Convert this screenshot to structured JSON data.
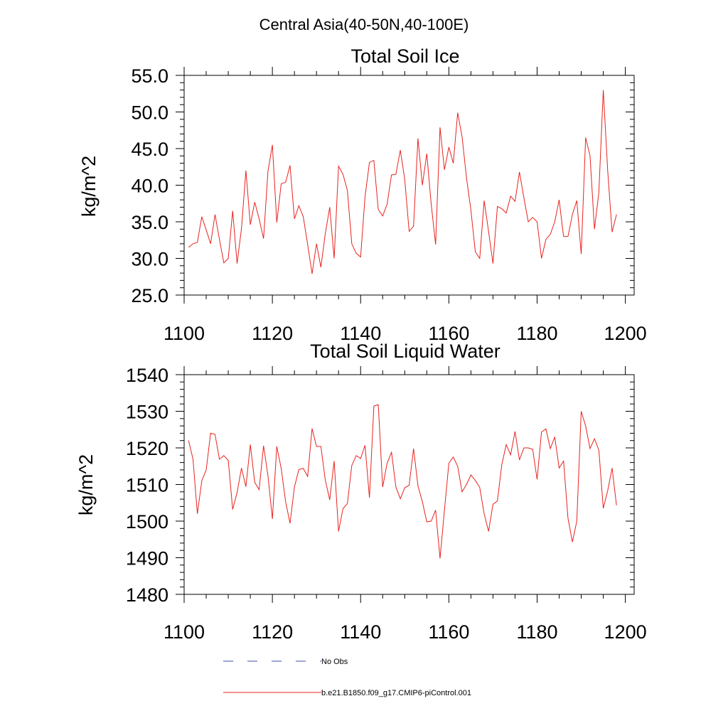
{
  "main_title": "Central Asia(40-50N,40-100E)",
  "chart_data": [
    {
      "type": "line",
      "title": "Total Soil Ice",
      "xlabel": "",
      "ylabel": "kg/m^2",
      "xlim": [
        1100,
        1202
      ],
      "ylim": [
        25,
        55
      ],
      "x_ticks": [
        1100,
        1120,
        1140,
        1160,
        1180,
        1200
      ],
      "x_tick_labels": [
        "1100",
        "1120",
        "1140",
        "1160",
        "1180",
        "1200"
      ],
      "y_ticks": [
        25,
        30,
        35,
        40,
        45,
        50,
        55
      ],
      "y_tick_labels": [
        "25.0",
        "30.0",
        "35.0",
        "40.0",
        "45.0",
        "50.0",
        "55.0"
      ],
      "series": [
        {
          "name": "b.e21.B1850.f09_g17.CMIP6-piControl.001",
          "color": "#e8231f",
          "x_start": 1101,
          "values": [
            31.5,
            32.0,
            32.2,
            35.7,
            33.9,
            32.0,
            36.0,
            32.6,
            29.4,
            30.0,
            36.5,
            29.3,
            34.1,
            42.0,
            34.6,
            37.7,
            35.4,
            32.7,
            41.9,
            45.5,
            34.9,
            40.2,
            40.4,
            42.7,
            35.4,
            37.2,
            35.7,
            31.9,
            27.9,
            32.0,
            28.8,
            33.4,
            37.0,
            30.0,
            42.6,
            41.5,
            39.3,
            32.0,
            30.7,
            30.2,
            38.4,
            43.1,
            43.4,
            36.7,
            35.8,
            37.4,
            41.4,
            41.5,
            44.8,
            40.8,
            33.7,
            34.4,
            46.4,
            40.0,
            44.3,
            37.4,
            31.9,
            47.9,
            42.1,
            45.2,
            43.0,
            49.9,
            46.6,
            41.0,
            36.6,
            30.9,
            30.0,
            37.9,
            33.7,
            29.3,
            37.1,
            36.8,
            36.2,
            38.5,
            37.8,
            41.8,
            38.3,
            35.0,
            35.6,
            35.0,
            30.0,
            32.6,
            33.3,
            35.0,
            38.0,
            33.0,
            33.0,
            36.0,
            37.9,
            30.6,
            46.5,
            44.0,
            34.0,
            39.0,
            53.0,
            42.0,
            33.6,
            36.0
          ]
        }
      ]
    },
    {
      "type": "line",
      "title": "Total Soil Liquid Water",
      "xlabel": "",
      "ylabel": "kg/m^2",
      "xlim": [
        1100,
        1202
      ],
      "ylim": [
        1480,
        1540
      ],
      "x_ticks": [
        1100,
        1120,
        1140,
        1160,
        1180,
        1200
      ],
      "x_tick_labels": [
        "1100",
        "1120",
        "1140",
        "1160",
        "1180",
        "1200"
      ],
      "y_ticks": [
        1480,
        1490,
        1500,
        1510,
        1520,
        1530,
        1540
      ],
      "y_tick_labels": [
        "1480",
        "1490",
        "1500",
        "1510",
        "1520",
        "1530",
        "1540"
      ],
      "series": [
        {
          "name": "b.e21.B1850.f09_g17.CMIP6-piControl.001",
          "color": "#e8231f",
          "x_start": 1101,
          "values": [
            1522,
            1517,
            1502,
            1511,
            1514,
            1524,
            1523.7,
            1516.9,
            1517.9,
            1516.6,
            1503.2,
            1507.8,
            1514.5,
            1509.4,
            1520.9,
            1510.6,
            1508.6,
            1520.6,
            1512.4,
            1500.6,
            1520.4,
            1514.4,
            1505.3,
            1499.4,
            1509.3,
            1514.1,
            1514.4,
            1512.2,
            1525.3,
            1520.4,
            1520.4,
            1511.2,
            1505.8,
            1516.4,
            1497.2,
            1503.4,
            1504.8,
            1515.2,
            1517.9,
            1517.1,
            1520.7,
            1506.4,
            1531.4,
            1531.8,
            1509.3,
            1515.8,
            1518.8,
            1509.3,
            1506.1,
            1509.1,
            1509.8,
            1519.8,
            1509.6,
            1505.3,
            1499.8,
            1500,
            1503,
            1489.8,
            1503,
            1515.8,
            1517.5,
            1515,
            1508,
            1510,
            1512.6,
            1511.1,
            1509.2,
            1502,
            1497.2,
            1504.6,
            1505.5,
            1515.4,
            1520.9,
            1518.1,
            1524.5,
            1516.7,
            1520,
            1520,
            1519.6,
            1511.4,
            1524.3,
            1525.2,
            1519.8,
            1523,
            1514.5,
            1516.4,
            1500.8,
            1494.3,
            1500,
            1530,
            1526,
            1519.8,
            1522.5,
            1519.4,
            1503.5,
            1508.3,
            1514.5,
            1504.3
          ]
        }
      ]
    }
  ],
  "legend": {
    "entries": [
      {
        "label": "No Obs",
        "style": "dashed",
        "color": "#3b4fa0"
      },
      {
        "label": "b.e21.B1850.f09_g17.CMIP6-piControl.001",
        "style": "solid",
        "color": "#e8231f"
      }
    ]
  }
}
